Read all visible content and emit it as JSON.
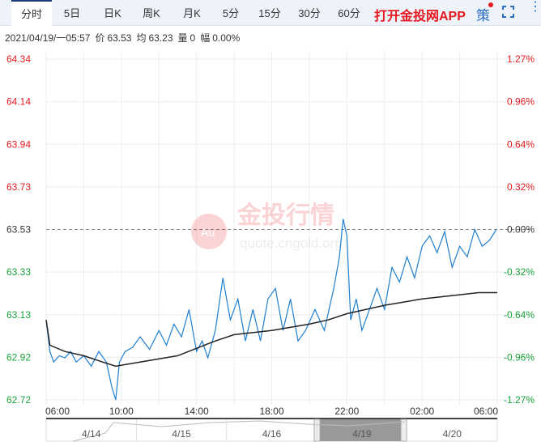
{
  "tabs": [
    "分时",
    "5日",
    "日K",
    "周K",
    "月K",
    "5分",
    "15分",
    "30分",
    "60分"
  ],
  "app_link": "打开金投网APP",
  "strategy_icon": "策",
  "info": {
    "datetime": "2021/04/19/一05:57",
    "price_label": "价",
    "price": "63.53",
    "avg_label": "均",
    "avg": "63.23",
    "vol_label": "量",
    "vol": "0",
    "amp_label": "幅",
    "amp": "0.00%"
  },
  "watermark": {
    "name": "金投行情",
    "url": "quote.cngold.org"
  },
  "colors": {
    "price": "#1e7fd0",
    "avg": "#222222",
    "up": "#e5191f",
    "down": "#1aa33a"
  },
  "chart_data": {
    "type": "line",
    "prev_close": 63.53,
    "ylim": [
      62.72,
      64.34
    ],
    "y_ticks_left": [
      "64.34",
      "64.14",
      "63.94",
      "63.73",
      "63.53",
      "63.33",
      "63.13",
      "62.92",
      "62.72"
    ],
    "y_ticks_right": [
      "1.27%",
      "0.96%",
      "0.64%",
      "0.32%",
      "0.00%",
      "-0.32%",
      "-0.64%",
      "-0.96%",
      "-1.27%"
    ],
    "x_ticks": [
      "06:00",
      "10:00",
      "14:00",
      "18:00",
      "22:00",
      "02:00",
      "06:00"
    ],
    "x_hours": [
      0,
      24
    ],
    "series": [
      {
        "name": "price",
        "x": [
          0,
          0.2,
          0.4,
          0.7,
          1,
          1.3,
          1.6,
          2,
          2.4,
          2.8,
          3.2,
          3.5,
          3.7,
          3.9,
          4.2,
          4.6,
          5,
          5.5,
          6,
          6.4,
          6.8,
          7.2,
          7.6,
          8,
          8.3,
          8.6,
          9,
          9.4,
          9.8,
          10.2,
          10.6,
          11,
          11.4,
          11.8,
          12.2,
          12.6,
          13,
          13.4,
          13.8,
          14.3,
          14.8,
          15.3,
          15.6,
          15.8,
          16,
          16.2,
          16.5,
          16.8,
          17.2,
          17.6,
          18,
          18.4,
          18.8,
          19.2,
          19.6,
          20,
          20.4,
          20.8,
          21.2,
          21.6,
          22,
          22.4,
          22.8,
          23.2,
          23.6,
          23.95
        ],
        "y": [
          63.1,
          62.95,
          62.9,
          62.93,
          62.92,
          62.95,
          62.9,
          62.93,
          62.88,
          62.95,
          62.9,
          62.78,
          62.72,
          62.9,
          62.95,
          62.97,
          63.02,
          62.96,
          63.05,
          62.98,
          63.08,
          63.02,
          63.15,
          62.95,
          63.0,
          62.92,
          63.05,
          63.3,
          63.1,
          63.2,
          63.0,
          63.15,
          63.0,
          63.2,
          63.25,
          63.05,
          63.2,
          63.0,
          63.05,
          63.15,
          63.05,
          63.25,
          63.4,
          63.58,
          63.5,
          63.1,
          63.2,
          63.05,
          63.15,
          63.25,
          63.15,
          63.35,
          63.28,
          63.4,
          63.3,
          63.45,
          63.5,
          63.42,
          63.52,
          63.35,
          63.45,
          63.4,
          63.53,
          63.45,
          63.48,
          63.53
        ]
      },
      {
        "name": "average",
        "x": [
          0,
          0.2,
          1,
          2,
          3,
          3.7,
          5,
          7,
          9,
          10,
          12,
          14,
          15,
          16,
          18,
          20,
          22,
          23,
          24
        ],
        "y": [
          63.1,
          62.98,
          62.95,
          62.93,
          62.9,
          62.88,
          62.9,
          62.93,
          63.0,
          63.03,
          63.05,
          63.08,
          63.1,
          63.13,
          63.17,
          63.2,
          63.22,
          63.23,
          63.23
        ]
      }
    ]
  },
  "navigator": {
    "dates": [
      "4/14",
      "4/15",
      "4/16",
      "4/19",
      "4/20"
    ]
  }
}
